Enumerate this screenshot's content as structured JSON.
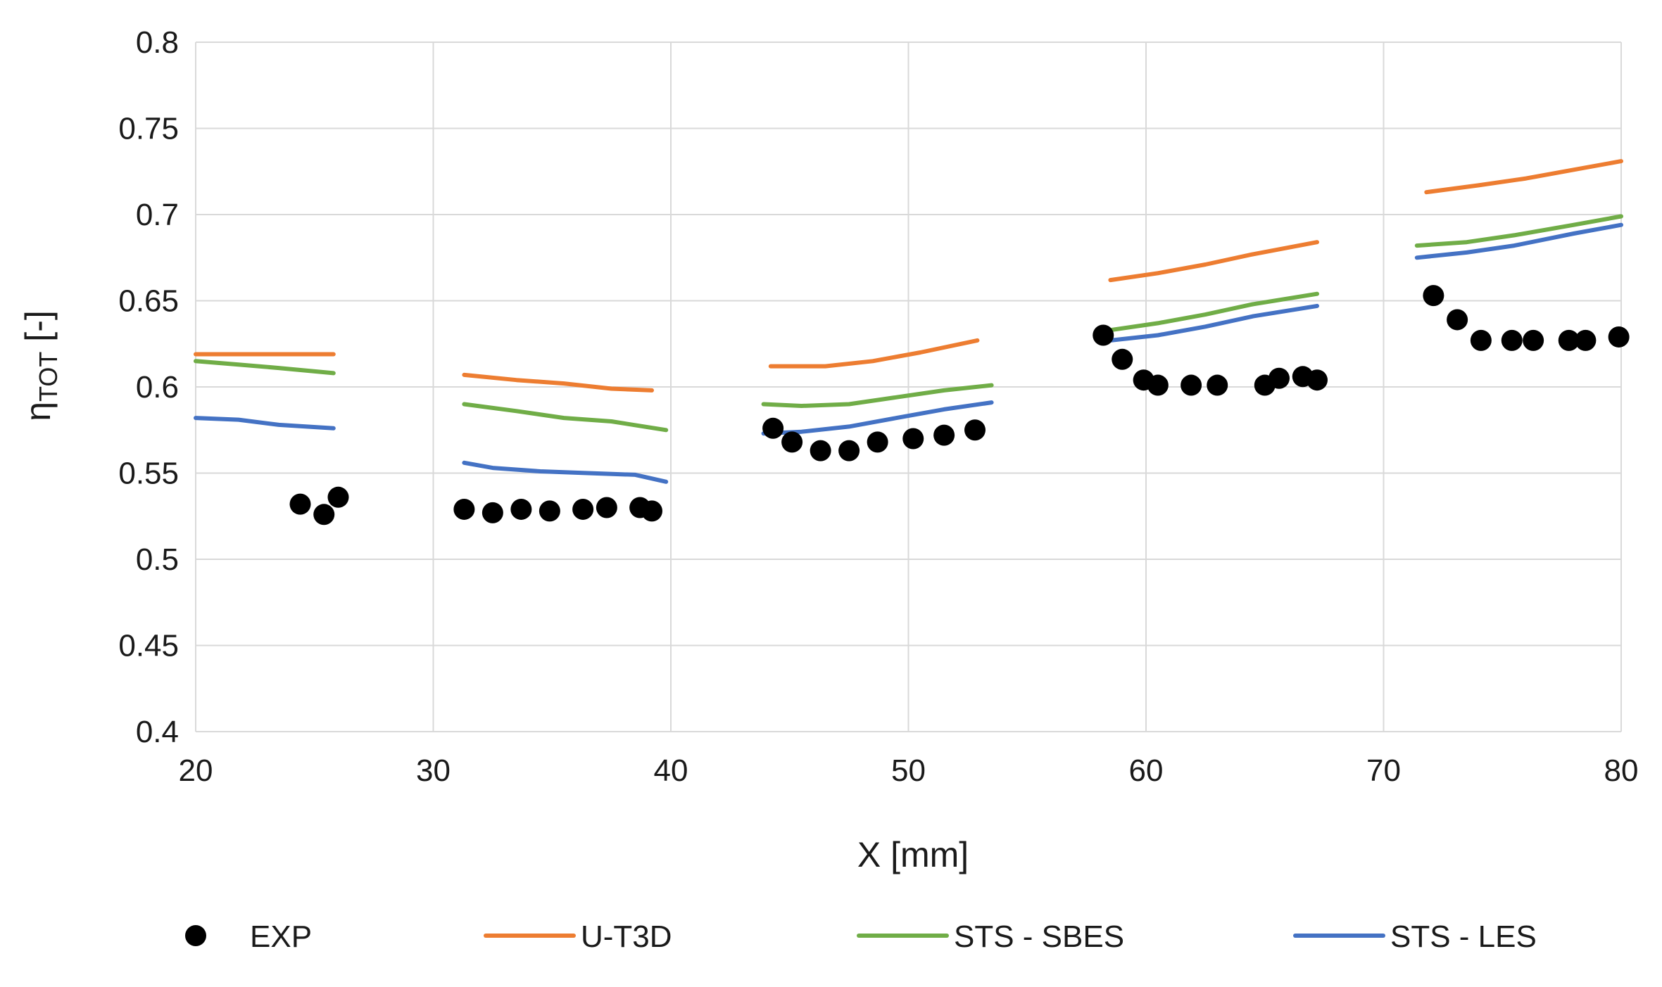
{
  "chart_data": {
    "type": "scatter+line",
    "title": "",
    "xlabel": "X [mm]",
    "ylabel": {
      "main": "η",
      "sub": "TOT",
      "suffix": " [-]"
    },
    "xlim": [
      20,
      80
    ],
    "ylim": [
      0.4,
      0.8
    ],
    "xticks": [
      20,
      30,
      40,
      50,
      60,
      70,
      80
    ],
    "xtick_labels": [
      "20",
      "30",
      "40",
      "50",
      "60",
      "70",
      "80"
    ],
    "yticks": [
      0.4,
      0.45,
      0.5,
      0.55,
      0.6,
      0.65,
      0.7,
      0.75,
      0.8
    ],
    "ytick_labels": [
      "0.4",
      "0.45",
      "0.5",
      "0.55",
      "0.6",
      "0.65",
      "0.7",
      "0.75",
      "0.8"
    ],
    "grid": true,
    "legend_position": "bottom",
    "series": [
      {
        "name": "EXP",
        "kind": "markers",
        "color": "#000000",
        "points": [
          [
            24.4,
            0.532
          ],
          [
            25.4,
            0.526
          ],
          [
            26.0,
            0.536
          ],
          [
            31.3,
            0.529
          ],
          [
            32.5,
            0.527
          ],
          [
            33.7,
            0.529
          ],
          [
            34.9,
            0.528
          ],
          [
            36.3,
            0.529
          ],
          [
            37.3,
            0.53
          ],
          [
            38.7,
            0.53
          ],
          [
            39.2,
            0.528
          ],
          [
            44.3,
            0.576
          ],
          [
            45.1,
            0.568
          ],
          [
            46.3,
            0.563
          ],
          [
            47.5,
            0.563
          ],
          [
            48.7,
            0.568
          ],
          [
            50.2,
            0.57
          ],
          [
            51.5,
            0.572
          ],
          [
            52.8,
            0.575
          ],
          [
            58.2,
            0.63
          ],
          [
            59.0,
            0.616
          ],
          [
            59.9,
            0.604
          ],
          [
            60.5,
            0.601
          ],
          [
            61.9,
            0.601
          ],
          [
            63.0,
            0.601
          ],
          [
            65.0,
            0.601
          ],
          [
            65.6,
            0.605
          ],
          [
            66.6,
            0.606
          ],
          [
            67.2,
            0.604
          ],
          [
            72.1,
            0.653
          ],
          [
            73.1,
            0.639
          ],
          [
            74.1,
            0.627
          ],
          [
            75.4,
            0.627
          ],
          [
            76.3,
            0.627
          ],
          [
            77.8,
            0.627
          ],
          [
            78.5,
            0.627
          ],
          [
            79.9,
            0.629
          ]
        ]
      },
      {
        "name": "U-T3D",
        "kind": "line",
        "color": "#ED7D31",
        "segments": [
          [
            [
              20.0,
              0.619
            ],
            [
              22.0,
              0.619
            ],
            [
              24.0,
              0.619
            ],
            [
              25.8,
              0.619
            ]
          ],
          [
            [
              31.3,
              0.607
            ],
            [
              33.5,
              0.604
            ],
            [
              35.5,
              0.602
            ],
            [
              37.5,
              0.599
            ],
            [
              39.2,
              0.598
            ]
          ],
          [
            [
              44.2,
              0.612
            ],
            [
              46.5,
              0.612
            ],
            [
              48.5,
              0.615
            ],
            [
              50.5,
              0.62
            ],
            [
              52.9,
              0.627
            ]
          ],
          [
            [
              58.5,
              0.662
            ],
            [
              60.5,
              0.666
            ],
            [
              62.5,
              0.671
            ],
            [
              64.5,
              0.677
            ],
            [
              67.2,
              0.684
            ]
          ],
          [
            [
              71.8,
              0.713
            ],
            [
              74.0,
              0.717
            ],
            [
              76.0,
              0.721
            ],
            [
              78.0,
              0.726
            ],
            [
              80.0,
              0.731
            ]
          ]
        ]
      },
      {
        "name": "STS - SBES",
        "kind": "line",
        "color": "#70AD47",
        "segments": [
          [
            [
              20.0,
              0.615
            ],
            [
              21.8,
              0.613
            ],
            [
              23.5,
              0.611
            ],
            [
              25.8,
              0.608
            ]
          ],
          [
            [
              31.3,
              0.59
            ],
            [
              33.5,
              0.586
            ],
            [
              35.5,
              0.582
            ],
            [
              37.5,
              0.58
            ],
            [
              39.8,
              0.575
            ]
          ],
          [
            [
              43.9,
              0.59
            ],
            [
              45.5,
              0.589
            ],
            [
              47.5,
              0.59
            ],
            [
              49.5,
              0.594
            ],
            [
              51.5,
              0.598
            ],
            [
              53.5,
              0.601
            ]
          ],
          [
            [
              58.5,
              0.633
            ],
            [
              60.5,
              0.637
            ],
            [
              62.5,
              0.642
            ],
            [
              64.5,
              0.648
            ],
            [
              67.2,
              0.654
            ]
          ],
          [
            [
              71.4,
              0.682
            ],
            [
              73.5,
              0.684
            ],
            [
              75.5,
              0.688
            ],
            [
              78.0,
              0.694
            ],
            [
              80.0,
              0.699
            ]
          ]
        ]
      },
      {
        "name": "STS - LES",
        "kind": "line",
        "color": "#4472C4",
        "segments": [
          [
            [
              20.0,
              0.582
            ],
            [
              21.8,
              0.581
            ],
            [
              23.5,
              0.578
            ],
            [
              25.8,
              0.576
            ]
          ],
          [
            [
              31.3,
              0.556
            ],
            [
              32.5,
              0.553
            ],
            [
              34.5,
              0.551
            ],
            [
              36.5,
              0.55
            ],
            [
              38.5,
              0.549
            ],
            [
              39.8,
              0.545
            ]
          ],
          [
            [
              43.9,
              0.573
            ],
            [
              45.5,
              0.574
            ],
            [
              47.5,
              0.577
            ],
            [
              49.5,
              0.582
            ],
            [
              51.5,
              0.587
            ],
            [
              53.5,
              0.591
            ]
          ],
          [
            [
              58.5,
              0.627
            ],
            [
              60.5,
              0.63
            ],
            [
              62.5,
              0.635
            ],
            [
              64.5,
              0.641
            ],
            [
              67.2,
              0.647
            ]
          ],
          [
            [
              71.4,
              0.675
            ],
            [
              73.5,
              0.678
            ],
            [
              75.5,
              0.682
            ],
            [
              78.0,
              0.689
            ],
            [
              80.0,
              0.694
            ]
          ]
        ]
      }
    ]
  }
}
